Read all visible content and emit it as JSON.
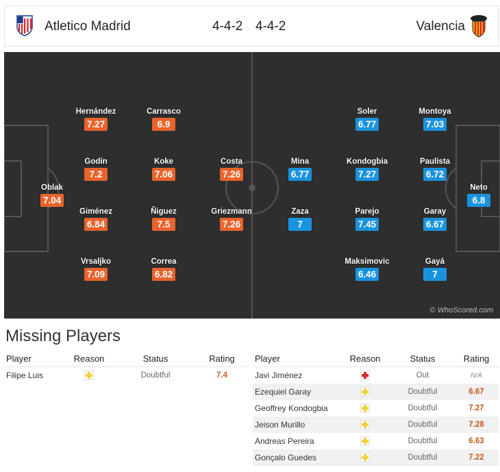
{
  "header": {
    "home": {
      "name": "Atletico Madrid",
      "formation": "4-4-2"
    },
    "away": {
      "name": "Valencia",
      "formation": "4-4-2"
    }
  },
  "pitch": {
    "home_players": [
      {
        "name": "Oblak",
        "rating": "7.04"
      },
      {
        "name": "Hernández",
        "rating": "7.27"
      },
      {
        "name": "Godín",
        "rating": "7.2"
      },
      {
        "name": "Giménez",
        "rating": "6.84"
      },
      {
        "name": "Vrsaljko",
        "rating": "7.09"
      },
      {
        "name": "Carrasco",
        "rating": "6.9"
      },
      {
        "name": "Koke",
        "rating": "7.06"
      },
      {
        "name": "Ñiguez",
        "rating": "7.5"
      },
      {
        "name": "Correa",
        "rating": "6.82"
      },
      {
        "name": "Costa",
        "rating": "7.26"
      },
      {
        "name": "Griezmann",
        "rating": "7.26"
      }
    ],
    "away_players": [
      {
        "name": "Neto",
        "rating": "6.8"
      },
      {
        "name": "Montoya",
        "rating": "7.03"
      },
      {
        "name": "Paulista",
        "rating": "6.72"
      },
      {
        "name": "Garay",
        "rating": "6.67"
      },
      {
        "name": "Gayá",
        "rating": "7"
      },
      {
        "name": "Soler",
        "rating": "6.77"
      },
      {
        "name": "Kondogbia",
        "rating": "7.27"
      },
      {
        "name": "Parejo",
        "rating": "7.45"
      },
      {
        "name": "Maksimovic",
        "rating": "6.46"
      },
      {
        "name": "Mina",
        "rating": "6.77"
      },
      {
        "name": "Zaza",
        "rating": "7"
      }
    ],
    "credit": "© WhoScored.com"
  },
  "missing": {
    "title": "Missing Players",
    "headers": {
      "player": "Player",
      "reason": "Reason",
      "status": "Status",
      "rating": "Rating"
    },
    "home": [
      {
        "player": "Filipe Luis",
        "reason_icon": "doubtful-icon",
        "status": "Doubtful",
        "rating": "7.4"
      }
    ],
    "away": [
      {
        "player": "Javi Jiménez",
        "reason_icon": "injury-icon",
        "status": "Out",
        "rating": "N/A"
      },
      {
        "player": "Ezequiel Garay",
        "reason_icon": "doubtful-icon",
        "status": "Doubtful",
        "rating": "6.67"
      },
      {
        "player": "Geoffrey Kondogbia",
        "reason_icon": "doubtful-icon",
        "status": "Doubtful",
        "rating": "7.27"
      },
      {
        "player": "Jeison Murillo",
        "reason_icon": "doubtful-icon",
        "status": "Doubtful",
        "rating": "7.28"
      },
      {
        "player": "Andreas Pereira",
        "reason_icon": "doubtful-icon",
        "status": "Doubtful",
        "rating": "6.63"
      },
      {
        "player": "Gonçalo Guedes",
        "reason_icon": "doubtful-icon",
        "status": "Doubtful",
        "rating": "7.22"
      }
    ]
  },
  "colors": {
    "home_rating": "#e8642c",
    "away_rating": "#1a93de",
    "doubtful": "#f3d33a",
    "injury": "#d9262b"
  }
}
